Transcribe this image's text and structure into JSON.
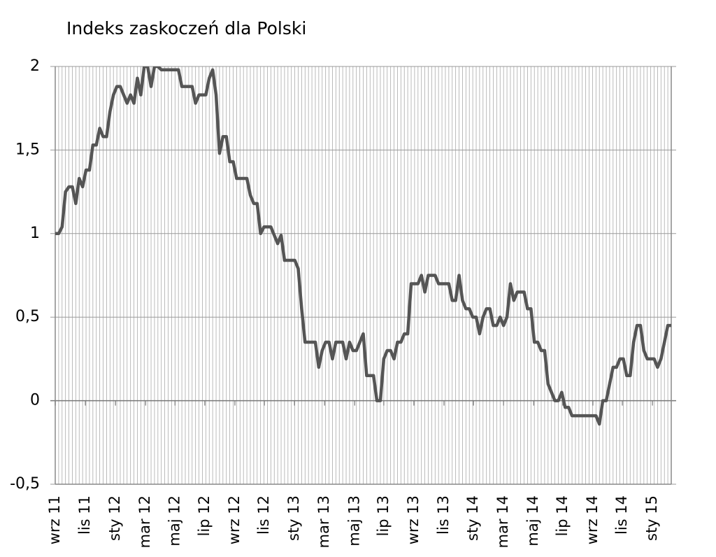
{
  "chart_data": {
    "type": "line",
    "title": "Indeks zaskoczeń dla Polski",
    "x": [
      0,
      1,
      2,
      3,
      4,
      5,
      6,
      7,
      8,
      9,
      10,
      11,
      12,
      13,
      14,
      15,
      16,
      17,
      18,
      19,
      20,
      21,
      22,
      23,
      24,
      25,
      26,
      27,
      28,
      29,
      30,
      31,
      32,
      33,
      34,
      35,
      36,
      37,
      38,
      39,
      40,
      41,
      42,
      43,
      44,
      45,
      46,
      47,
      48,
      49,
      50,
      51,
      52,
      53,
      54,
      55,
      56,
      57,
      58,
      59,
      60,
      61,
      62,
      63,
      64,
      65,
      66,
      67,
      68,
      69,
      70,
      71,
      72,
      73,
      74,
      75,
      76,
      77,
      78,
      79,
      80,
      81,
      82,
      83,
      84,
      85,
      86,
      87,
      88,
      89,
      90,
      91,
      92,
      93,
      94,
      95,
      96,
      97,
      98,
      99,
      100,
      101,
      102,
      103,
      104,
      105,
      106,
      107,
      108,
      109,
      110,
      111,
      112,
      113,
      114,
      115,
      116,
      117,
      118,
      119,
      120,
      121,
      122,
      123,
      124,
      125,
      126,
      127,
      128,
      129,
      130,
      131,
      132,
      133,
      134,
      135,
      136,
      137,
      138,
      139,
      140,
      141,
      142,
      143,
      144,
      145,
      146,
      147,
      148,
      149,
      150,
      151,
      152,
      153,
      154,
      155,
      156,
      157,
      158,
      159,
      160,
      161,
      162,
      163,
      164,
      165,
      166,
      167,
      168,
      169,
      170,
      171,
      172,
      173,
      174,
      175,
      176,
      177,
      178,
      179,
      180
    ],
    "series": [
      {
        "color": "#555555",
        "values": [
          1.0,
          1.0,
          1.04,
          1.25,
          1.28,
          1.28,
          1.18,
          1.33,
          1.28,
          1.38,
          1.38,
          1.53,
          1.53,
          1.63,
          1.58,
          1.58,
          1.73,
          1.83,
          1.88,
          1.88,
          1.83,
          1.78,
          1.83,
          1.78,
          1.93,
          1.83,
          2.0,
          2.0,
          1.88,
          2.0,
          2.0,
          1.98,
          1.98,
          1.98,
          1.98,
          1.98,
          1.98,
          1.88,
          1.88,
          1.88,
          1.88,
          1.78,
          1.83,
          1.83,
          1.83,
          1.93,
          1.98,
          1.83,
          1.48,
          1.58,
          1.58,
          1.43,
          1.43,
          1.33,
          1.33,
          1.33,
          1.33,
          1.23,
          1.18,
          1.18,
          1.0,
          1.04,
          1.04,
          1.04,
          0.99,
          0.94,
          0.99,
          0.84,
          0.84,
          0.84,
          0.84,
          0.79,
          0.55,
          0.35,
          0.35,
          0.35,
          0.35,
          0.2,
          0.3,
          0.35,
          0.35,
          0.25,
          0.35,
          0.35,
          0.35,
          0.25,
          0.35,
          0.3,
          0.3,
          0.35,
          0.4,
          0.15,
          0.15,
          0.15,
          0,
          0,
          0.25,
          0.3,
          0.3,
          0.25,
          0.35,
          0.35,
          0.4,
          0.4,
          0.7,
          0.7,
          0.7,
          0.75,
          0.65,
          0.75,
          0.75,
          0.75,
          0.7,
          0.7,
          0.7,
          0.7,
          0.6,
          0.6,
          0.75,
          0.6,
          0.55,
          0.55,
          0.5,
          0.5,
          0.4,
          0.5,
          0.55,
          0.55,
          0.45,
          0.45,
          0.5,
          0.45,
          0.5,
          0.7,
          0.6,
          0.65,
          0.65,
          0.65,
          0.55,
          0.55,
          0.35,
          0.35,
          0.3,
          0.3,
          0.1,
          0.05,
          0,
          0,
          0.05,
          -0.04,
          -0.04,
          -0.09,
          -0.09,
          -0.09,
          -0.09,
          -0.09,
          -0.09,
          -0.09,
          -0.09,
          -0.14,
          0,
          0,
          0.1,
          0.2,
          0.2,
          0.25,
          0.25,
          0.15,
          0.15,
          0.35,
          0.45,
          0.45,
          0.3,
          0.25,
          0.25,
          0.25,
          0.2,
          0.25,
          0.35,
          0.45,
          0.45
        ]
      }
    ],
    "xlim": [
      0,
      180
    ],
    "xticks": [
      {
        "value": 0,
        "label": "wrz 11"
      },
      {
        "value": 8.8,
        "label": "lis 11"
      },
      {
        "value": 17.6,
        "label": "sty 12"
      },
      {
        "value": 26.4,
        "label": "mar 12"
      },
      {
        "value": 35,
        "label": "maj 12"
      },
      {
        "value": 43.7,
        "label": "lip 12"
      },
      {
        "value": 52.5,
        "label": "wrz 12"
      },
      {
        "value": 61.1,
        "label": "lis 12"
      },
      {
        "value": 69.9,
        "label": "sty 13"
      },
      {
        "value": 78.7,
        "label": "mar 13"
      },
      {
        "value": 87.5,
        "label": "maj 13"
      },
      {
        "value": 96,
        "label": "lip 13"
      },
      {
        "value": 104.8,
        "label": "wrz 13"
      },
      {
        "value": 113.6,
        "label": "lis 13"
      },
      {
        "value": 122.2,
        "label": "sty 14"
      },
      {
        "value": 131,
        "label": "mar 14"
      },
      {
        "value": 139.8,
        "label": "maj 14"
      },
      {
        "value": 148.3,
        "label": "lip 14"
      },
      {
        "value": 157.1,
        "label": "wrz 14"
      },
      {
        "value": 165.7,
        "label": "lis 14"
      },
      {
        "value": 174.5,
        "label": "sty 15"
      }
    ],
    "ylim": [
      -0.5,
      2
    ],
    "yticks": [
      {
        "value": -0.5,
        "label": "-0,5"
      },
      0,
      {
        "value": 0.5,
        "label": "0,5"
      },
      1,
      {
        "value": 1.5,
        "label": "1,5"
      },
      2
    ],
    "grid": true
  }
}
